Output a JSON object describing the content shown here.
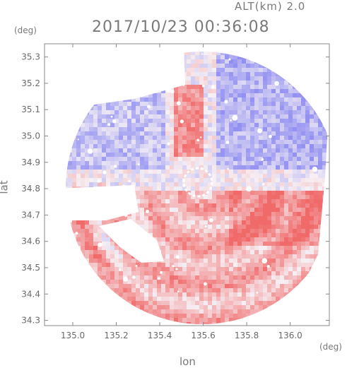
{
  "header": {
    "altitude_label": "ALT(km) 2.0",
    "timestamp": "2017/10/23 00:36:08",
    "y_unit": "(deg)",
    "x_unit": "(deg)"
  },
  "chart_data": {
    "type": "heatmap",
    "title": "2017/10/23 00:36:08",
    "xlabel": "lon",
    "ylabel": "lat",
    "xlim": [
      134.87,
      136.18
    ],
    "ylim": [
      34.28,
      35.35
    ],
    "x_ticks": [
      "135.0",
      "135.2",
      "135.4",
      "135.6",
      "135.8",
      "136.0"
    ],
    "x_tick_values": [
      135.0,
      135.2,
      135.4,
      135.6,
      135.8,
      136.0
    ],
    "y_ticks": [
      "34.3",
      "34.4",
      "34.5",
      "34.6",
      "34.7",
      "34.8",
      "34.9",
      "35.0",
      "35.1",
      "35.2",
      "35.3"
    ],
    "y_tick_values": [
      34.3,
      34.4,
      34.5,
      34.6,
      34.7,
      34.8,
      34.9,
      35.0,
      35.1,
      35.2,
      35.3
    ],
    "radar_center": [
      135.53,
      34.82
    ],
    "radar_range_deg": 0.6,
    "colors": {
      "positive": "#f06a6a",
      "negative": "#6a6af0",
      "neutral": "#f4f0f2"
    },
    "grid": false,
    "legend": "none"
  }
}
